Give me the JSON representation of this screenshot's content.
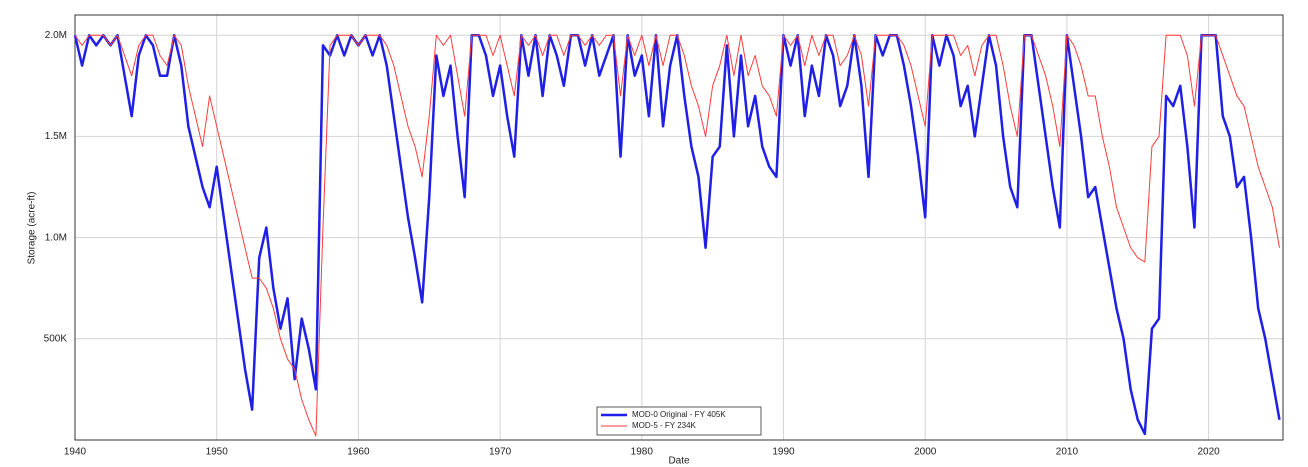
{
  "chart_data": {
    "type": "line",
    "x_label": "Date",
    "y_label": "Storage (acre-ft)",
    "x": [
      1940,
      1940.5,
      1941,
      1941.5,
      1942,
      1942.5,
      1943,
      1943.5,
      1944,
      1944.5,
      1945,
      1945.5,
      1946,
      1946.5,
      1947,
      1947.5,
      1948,
      1948.5,
      1949,
      1949.5,
      1950,
      1950.5,
      1951,
      1951.5,
      1952,
      1952.5,
      1953,
      1953.5,
      1954,
      1954.5,
      1955,
      1955.5,
      1956,
      1956.5,
      1957,
      1957.5,
      1958,
      1958.5,
      1959,
      1959.5,
      1960,
      1960.5,
      1961,
      1961.5,
      1962,
      1962.5,
      1963,
      1963.5,
      1964,
      1964.5,
      1965,
      1965.5,
      1966,
      1966.5,
      1967,
      1967.5,
      1968,
      1968.5,
      1969,
      1969.5,
      1970,
      1970.5,
      1971,
      1971.5,
      1972,
      1972.5,
      1973,
      1973.5,
      1974,
      1974.5,
      1975,
      1975.5,
      1976,
      1976.5,
      1977,
      1977.5,
      1978,
      1978.5,
      1979,
      1979.5,
      1980,
      1980.5,
      1981,
      1981.5,
      1982,
      1982.5,
      1983,
      1983.5,
      1984,
      1984.5,
      1985,
      1985.5,
      1986,
      1986.5,
      1987,
      1987.5,
      1988,
      1988.5,
      1989,
      1989.5,
      1990,
      1990.5,
      1991,
      1991.5,
      1992,
      1992.5,
      1993,
      1993.5,
      1994,
      1994.5,
      1995,
      1995.5,
      1996,
      1996.5,
      1997,
      1997.5,
      1998,
      1998.5,
      1999,
      1999.5,
      2000,
      2000.5,
      2001,
      2001.5,
      2002,
      2002.5,
      2003,
      2003.5,
      2004,
      2004.5,
      2005,
      2005.5,
      2006,
      2006.5,
      2007,
      2007.5,
      2008,
      2008.5,
      2009,
      2009.5,
      2010,
      2010.5,
      2011,
      2011.5,
      2012,
      2012.5,
      2013,
      2013.5,
      2014,
      2014.5,
      2015,
      2015.5,
      2016,
      2016.5,
      2017,
      2017.5,
      2018,
      2018.5,
      2019,
      2019.5,
      2020,
      2020.5,
      2021,
      2021.5,
      2022,
      2022.5,
      2023,
      2023.5,
      2024,
      2024.5,
      2025
    ],
    "series": [
      {
        "name": "MOD-0 Original - FY 405K",
        "color": "#1f1fe6",
        "values": [
          2000000,
          1850000,
          2000000,
          1950000,
          2000000,
          1950000,
          2000000,
          1800000,
          1600000,
          1900000,
          2000000,
          1950000,
          1800000,
          1800000,
          2000000,
          1850000,
          1550000,
          1400000,
          1250000,
          1150000,
          1350000,
          1100000,
          850000,
          600000,
          350000,
          150000,
          900000,
          1050000,
          750000,
          550000,
          700000,
          300000,
          600000,
          450000,
          250000,
          1950000,
          1900000,
          2000000,
          1900000,
          2000000,
          1950000,
          2000000,
          1900000,
          2000000,
          1850000,
          1600000,
          1350000,
          1100000,
          900000,
          680000,
          1200000,
          1900000,
          1700000,
          1850000,
          1500000,
          1200000,
          2000000,
          2000000,
          1900000,
          1700000,
          1850000,
          1600000,
          1400000,
          2000000,
          1800000,
          2000000,
          1700000,
          2000000,
          1900000,
          1750000,
          2000000,
          2000000,
          1850000,
          2000000,
          1800000,
          1900000,
          2000000,
          1400000,
          2000000,
          1800000,
          1900000,
          1600000,
          2000000,
          1550000,
          1850000,
          2000000,
          1700000,
          1450000,
          1300000,
          950000,
          1400000,
          1450000,
          1950000,
          1500000,
          1900000,
          1550000,
          1700000,
          1450000,
          1350000,
          1300000,
          2000000,
          1850000,
          2000000,
          1600000,
          1850000,
          1700000,
          2000000,
          1900000,
          1650000,
          1750000,
          2000000,
          1750000,
          1300000,
          2000000,
          1900000,
          2000000,
          2000000,
          1850000,
          1650000,
          1400000,
          1100000,
          2000000,
          1850000,
          2000000,
          1900000,
          1650000,
          1750000,
          1500000,
          1750000,
          2000000,
          1850000,
          1500000,
          1250000,
          1150000,
          2000000,
          2000000,
          1750000,
          1500000,
          1250000,
          1050000,
          2000000,
          1750000,
          1500000,
          1200000,
          1250000,
          1050000,
          850000,
          650000,
          500000,
          250000,
          100000,
          30000,
          550000,
          600000,
          1700000,
          1650000,
          1750000,
          1450000,
          1050000,
          2000000,
          2000000,
          2000000,
          1600000,
          1500000,
          1250000,
          1300000,
          1000000,
          650000,
          500000,
          300000,
          100000
        ]
      },
      {
        "name": "MOD-5 - FY 234K",
        "color": "#ff3b3b",
        "values": [
          2000000,
          1950000,
          2000000,
          2000000,
          2000000,
          1950000,
          2000000,
          1900000,
          1800000,
          1950000,
          2000000,
          2000000,
          1900000,
          1850000,
          2000000,
          1950000,
          1750000,
          1600000,
          1450000,
          1700000,
          1550000,
          1400000,
          1250000,
          1100000,
          950000,
          800000,
          800000,
          750000,
          650000,
          500000,
          400000,
          350000,
          200000,
          100000,
          20000,
          1050000,
          1950000,
          2000000,
          2000000,
          2000000,
          1950000,
          2000000,
          2000000,
          2000000,
          1950000,
          1850000,
          1700000,
          1550000,
          1450000,
          1300000,
          1600000,
          2000000,
          1950000,
          2000000,
          1800000,
          1600000,
          2000000,
          2000000,
          2000000,
          1900000,
          2000000,
          1850000,
          1700000,
          2000000,
          1950000,
          2000000,
          1900000,
          2000000,
          2000000,
          1900000,
          2000000,
          2000000,
          1950000,
          2000000,
          1950000,
          2000000,
          2000000,
          1700000,
          2000000,
          1900000,
          2000000,
          1850000,
          2000000,
          1850000,
          2000000,
          2000000,
          1900000,
          1750000,
          1650000,
          1500000,
          1750000,
          1850000,
          2000000,
          1800000,
          2000000,
          1800000,
          1900000,
          1750000,
          1700000,
          1600000,
          2000000,
          1950000,
          2000000,
          1850000,
          2000000,
          1900000,
          2000000,
          2000000,
          1850000,
          1900000,
          2000000,
          1900000,
          1650000,
          2000000,
          2000000,
          2000000,
          2000000,
          1950000,
          1850000,
          1700000,
          1550000,
          2000000,
          2000000,
          2000000,
          2000000,
          1900000,
          1950000,
          1800000,
          1950000,
          2000000,
          2000000,
          1850000,
          1650000,
          1500000,
          2000000,
          2000000,
          1900000,
          1800000,
          1650000,
          1450000,
          2000000,
          1950000,
          1850000,
          1700000,
          1700000,
          1500000,
          1350000,
          1150000,
          1050000,
          950000,
          900000,
          880000,
          1450000,
          1500000,
          2000000,
          2000000,
          2000000,
          1900000,
          1650000,
          2000000,
          2000000,
          2000000,
          1900000,
          1800000,
          1700000,
          1650000,
          1500000,
          1350000,
          1250000,
          1150000,
          950000
        ]
      }
    ],
    "xlim": [
      1940,
      2025.25
    ],
    "xticks": [
      1940,
      1950,
      1960,
      1970,
      1980,
      1990,
      2000,
      2010,
      2020
    ],
    "ylim": [
      0,
      2100000
    ],
    "yticks": [
      {
        "value": 500000,
        "label": "500K"
      },
      {
        "value": 1000000,
        "label": "1.0M"
      },
      {
        "value": 1500000,
        "label": "1.5M"
      },
      {
        "value": 2000000,
        "label": "2.0M"
      }
    ],
    "grid": true,
    "legend": "lower center"
  }
}
